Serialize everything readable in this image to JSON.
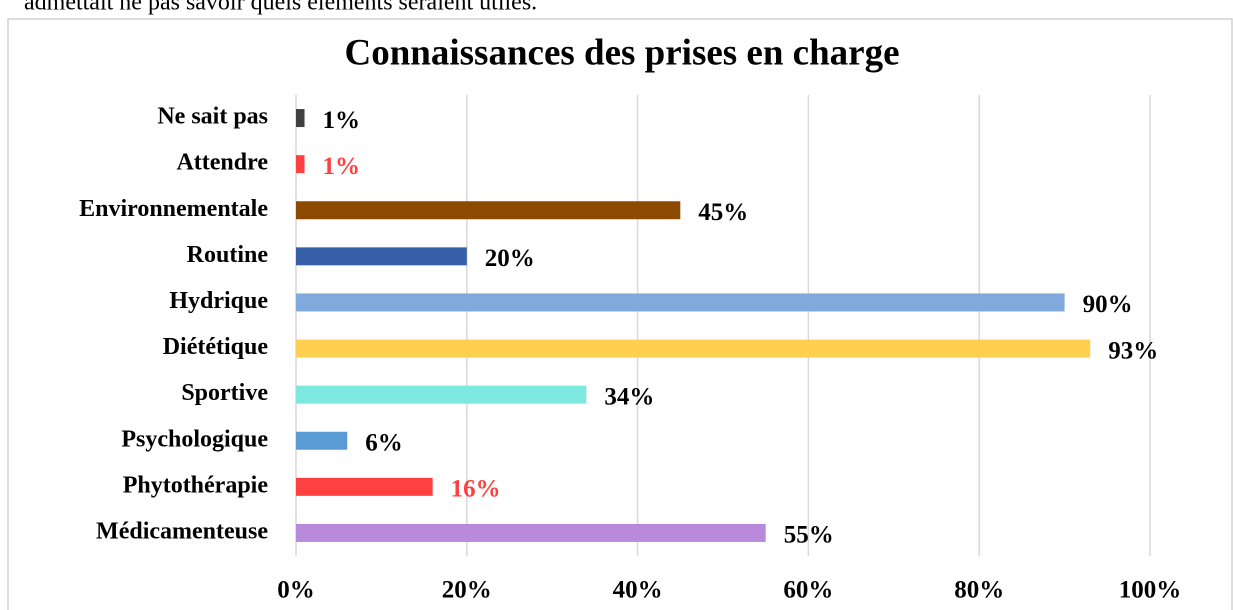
{
  "text_above": "admettait ne pas savoir quels éléments seraient utiles.",
  "chart_data": {
    "type": "barh",
    "title": "Connaissances des prises en charge",
    "categories": [
      "Ne sait pas",
      "Attendre",
      "Environnementale",
      "Routine",
      "Hydrique",
      "Diététique",
      "Sportive",
      "Psychologique",
      "Phytothérapie",
      "Médicamenteuse"
    ],
    "values": [
      1,
      1,
      45,
      20,
      90,
      93,
      34,
      6,
      16,
      55
    ],
    "value_labels": [
      "1%",
      "1%",
      "45%",
      "20%",
      "90%",
      "93%",
      "34%",
      "6%",
      "16%",
      "55%"
    ],
    "colors": [
      "#404040",
      "#ff4040",
      "#8b4a00",
      "#3560a8",
      "#7faadb",
      "#ffd04f",
      "#7de8df",
      "#5b9bd5",
      "#ff4040",
      "#b98adb"
    ],
    "label_colors": [
      "#000000",
      "#ff4040",
      "#000000",
      "#000000",
      "#000000",
      "#000000",
      "#000000",
      "#000000",
      "#ff4040",
      "#000000"
    ],
    "xlim": [
      0,
      100
    ],
    "xticks": [
      {
        "value": 0,
        "label": "0%"
      },
      {
        "value": 20,
        "label": "20%"
      },
      {
        "value": 40,
        "label": "40%"
      },
      {
        "value": 60,
        "label": "60%"
      },
      {
        "value": 80,
        "label": "80%"
      },
      {
        "value": 100,
        "label": "100%"
      }
    ],
    "grid": true
  }
}
